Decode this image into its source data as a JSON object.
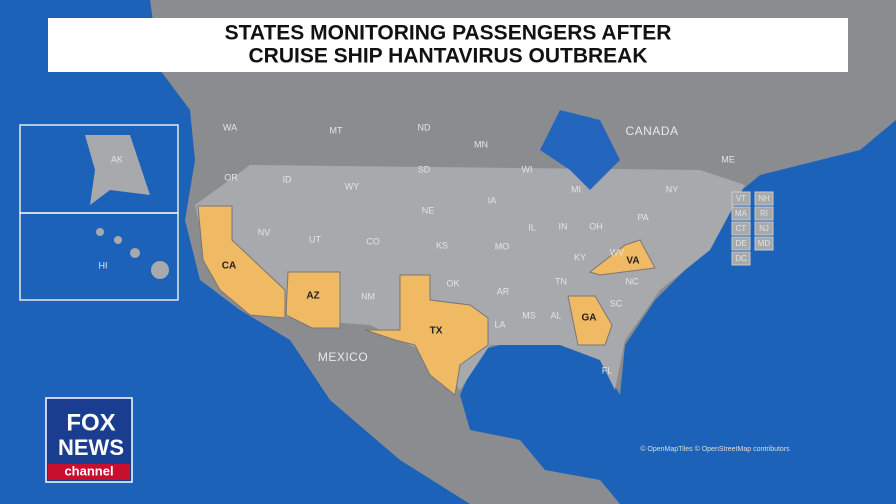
{
  "header": {
    "title_lines": [
      "STATES MONITORING PASSENGERS AFTER",
      "CRUISE SHIP HANTAVIRUS OUTBREAK"
    ]
  },
  "map": {
    "countries": [
      "CANADA",
      "MEXICO"
    ],
    "highlighted_states": [
      "CA",
      "AZ",
      "TX",
      "GA",
      "VA"
    ],
    "other_states": [
      "AK",
      "HI",
      "WA",
      "MT",
      "ND",
      "MN",
      "OR",
      "ID",
      "WY",
      "SD",
      "WI",
      "MI",
      "NY",
      "NV",
      "UT",
      "CO",
      "NE",
      "IA",
      "IL",
      "IN",
      "OH",
      "PA",
      "KS",
      "MO",
      "KY",
      "WV",
      "NM",
      "OK",
      "AR",
      "TN",
      "NC",
      "SC",
      "MS",
      "AL",
      "LA",
      "FL",
      "ME"
    ],
    "small_states": [
      "VT",
      "NH",
      "MA",
      "RI",
      "CT",
      "NJ",
      "DE",
      "MD",
      "DC"
    ],
    "attribution": "© OpenMapTiles © OpenStreetMap contributors"
  },
  "logo": {
    "lines": [
      "FOX",
      "NEWS",
      "channel"
    ]
  }
}
